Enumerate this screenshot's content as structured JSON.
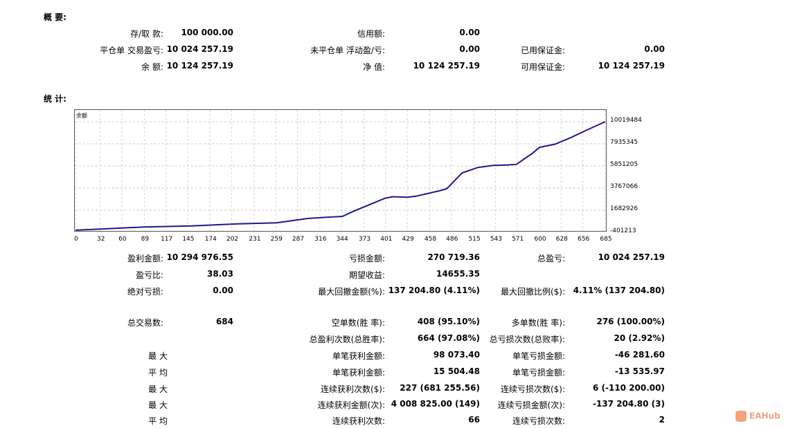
{
  "summary": {
    "header": "概 要:",
    "rows": [
      {
        "l1": "存/取 款:",
        "v1": "100 000.00",
        "l2": "信用额:",
        "v2": "0.00",
        "l3": "",
        "v3": ""
      },
      {
        "l1": "平仓单 交易盈亏:",
        "v1": "10 024 257.19",
        "l2": "未平仓单 浮动盈/亏:",
        "v2": "0.00",
        "l3": "已用保证金:",
        "v3": "0.00"
      },
      {
        "l1": "余 额:",
        "v1": "10 124 257.19",
        "l2": "净 值:",
        "v2": "10 124 257.19",
        "l3": "可用保证金:",
        "v3": "10 124 257.19"
      }
    ]
  },
  "stats_header": "统 计:",
  "chart_data": {
    "type": "line",
    "title": "余额",
    "y_ticks": [
      "10019484",
      "7935345",
      "5851205",
      "3767066",
      "1682926",
      "-401213"
    ],
    "x_ticks": [
      "0",
      "32",
      "60",
      "89",
      "117",
      "145",
      "174",
      "202",
      "231",
      "259",
      "287",
      "316",
      "344",
      "373",
      "401",
      "429",
      "458",
      "486",
      "515",
      "543",
      "571",
      "600",
      "628",
      "656",
      "685"
    ],
    "ylim": [
      -401213,
      10019484
    ],
    "xlim": [
      0,
      685
    ],
    "grid": true,
    "line_color": "#1a1a8c",
    "x": [
      0,
      30,
      60,
      90,
      120,
      150,
      180,
      210,
      240,
      260,
      280,
      300,
      320,
      345,
      360,
      380,
      400,
      410,
      430,
      440,
      470,
      480,
      500,
      520,
      540,
      560,
      570,
      590,
      600,
      620,
      640,
      660,
      685
    ],
    "y": [
      -200000,
      -100000,
      0,
      100000,
      150000,
      200000,
      300000,
      400000,
      450000,
      500000,
      700000,
      900000,
      1000000,
      1100000,
      1600000,
      2200000,
      2800000,
      2950000,
      2900000,
      3000000,
      3500000,
      3700000,
      5200000,
      5700000,
      5900000,
      5950000,
      6000000,
      7000000,
      7600000,
      7900000,
      8500000,
      9200000,
      10019484
    ]
  },
  "stats": {
    "row1": {
      "l1": "盈利金额:",
      "v1": "10 294 976.55",
      "l2": "亏损金额:",
      "v2": "270 719.36",
      "l3": "总盈亏:",
      "v3": "10 024 257.19"
    },
    "row2": {
      "l1": "盈亏比:",
      "v1": "38.03",
      "l2": "期望收益:",
      "v2": "14655.35",
      "l3": "",
      "v3": ""
    },
    "row3": {
      "l1": "绝对亏损:",
      "v1": "0.00",
      "l2": "最大回撤金额(%):",
      "v2": "137 204.80 (4.11%)",
      "l3": "最大回撤比例($):",
      "v3": "4.11% (137 204.80)"
    },
    "row4": {
      "l1": "总交易数:",
      "v1": "684",
      "l2": "空单数(胜 率):",
      "v2": "408 (95.10%)",
      "l3": "多单数(胜 率):",
      "v3": "276 (100.00%)"
    },
    "row5": {
      "l1": "",
      "v1": "",
      "l2": "总盈利次数(总胜率):",
      "v2": "664 (97.08%)",
      "l3": "总亏损次数(总败率):",
      "v3": "20 (2.92%)"
    },
    "row6": {
      "l1": "最 大",
      "v1": "",
      "l2": "单笔获利金额:",
      "v2": "98 073.40",
      "l3": "单笔亏损金额:",
      "v3": "-46 281.60"
    },
    "row7": {
      "l1": "平 均",
      "v1": "",
      "l2": "单笔获利金额:",
      "v2": "15 504.48",
      "l3": "单笔亏损金额:",
      "v3": "-13 535.97"
    },
    "row8": {
      "l1": "最 大",
      "v1": "",
      "l2": "连续获利次数($):",
      "v2": "227 (681 255.56)",
      "l3": "连续亏损次数($):",
      "v3": "6 (-110 200.00)"
    },
    "row9": {
      "l1": "最 大",
      "v1": "",
      "l2": "连续获利金额(次):",
      "v2": "4 008 825.00 (149)",
      "l3": "连续亏损金额(次):",
      "v3": "-137 204.80 (3)"
    },
    "row10": {
      "l1": "平 均",
      "v1": "",
      "l2": "连续获利次数:",
      "v2": "66",
      "l3": "连续亏损次数:",
      "v3": "2"
    }
  },
  "watermark": {
    "text": "EAHub"
  }
}
